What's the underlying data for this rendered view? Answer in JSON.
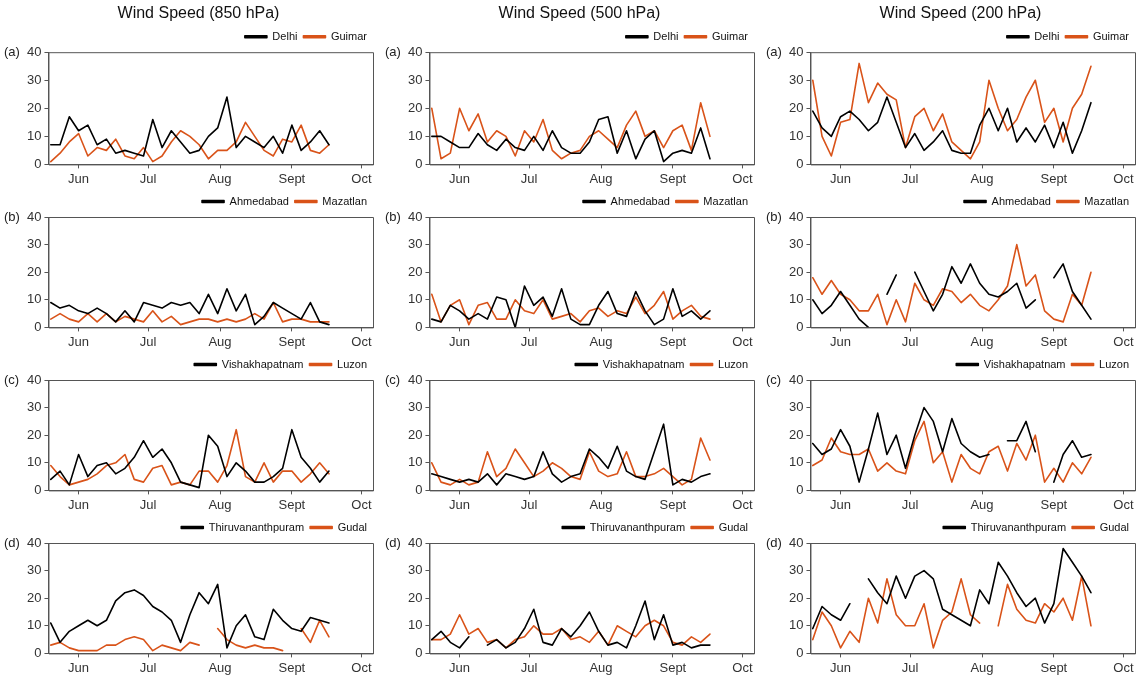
{
  "chart_data": [
    {
      "type": "line",
      "title": "Wind Speed (850 hPa)",
      "annotations": [
        "(a)"
      ],
      "legend": "top right",
      "x": [
        "--05-20",
        "--05-24",
        "--05-28",
        "--06-01",
        "--06-05",
        "--06-09",
        "--06-13",
        "--06-17",
        "--06-21",
        "--06-25",
        "--06-29",
        "--07-03",
        "--07-07",
        "--07-11",
        "--07-15",
        "--07-19",
        "--07-23",
        "--07-27",
        "--07-31",
        "--08-04",
        "--08-08",
        "--08-12",
        "--08-16",
        "--08-20",
        "--08-24",
        "--08-28",
        "--09-01",
        "--09-05",
        "--09-09",
        "--09-13",
        "--09-17"
      ],
      "xlim": [
        "--05-19",
        "--10-06"
      ],
      "xticks": [
        {
          "value": "--06-01",
          "label": "Jun"
        },
        {
          "value": "--07-01",
          "label": "Jul"
        },
        {
          "value": "--08-01",
          "label": "Aug"
        },
        {
          "value": "--09-01",
          "label": "Sept"
        },
        {
          "value": "--10-01",
          "label": "Oct"
        }
      ],
      "ylim": [
        0,
        40
      ],
      "yticks": [
        0,
        10,
        20,
        30,
        40
      ],
      "series": [
        {
          "name": "Delhi",
          "color": "#000000",
          "values": [
            7,
            7,
            17,
            12,
            14,
            7,
            9,
            4,
            5,
            4,
            3,
            16,
            6,
            12,
            8,
            4,
            5,
            10,
            13,
            24,
            6,
            10,
            8,
            6,
            10,
            4,
            14,
            5,
            8,
            12,
            7
          ]
        },
        {
          "name": "Guimar",
          "color": "#d95319",
          "values": [
            1,
            4,
            8,
            11,
            3,
            6,
            5,
            9,
            3,
            2,
            6,
            1,
            3,
            8,
            12,
            10,
            7,
            2,
            5,
            5,
            8,
            15,
            10,
            5,
            3,
            9,
            8,
            14,
            5,
            4,
            7
          ]
        }
      ]
    },
    {
      "type": "line",
      "title": "Wind Speed (500 hPa)",
      "annotations": [
        "(a)"
      ],
      "legend": "top right",
      "x": [
        "--05-20",
        "--05-24",
        "--05-28",
        "--06-01",
        "--06-05",
        "--06-09",
        "--06-13",
        "--06-17",
        "--06-21",
        "--06-25",
        "--06-29",
        "--07-03",
        "--07-07",
        "--07-11",
        "--07-15",
        "--07-19",
        "--07-23",
        "--07-27",
        "--07-31",
        "--08-04",
        "--08-08",
        "--08-12",
        "--08-16",
        "--08-20",
        "--08-24",
        "--08-28",
        "--09-01",
        "--09-05",
        "--09-09",
        "--09-13",
        "--09-17"
      ],
      "xlim": [
        "--05-19",
        "--10-06"
      ],
      "xticks": [
        {
          "value": "--06-01",
          "label": "Jun"
        },
        {
          "value": "--07-01",
          "label": "Jul"
        },
        {
          "value": "--08-01",
          "label": "Aug"
        },
        {
          "value": "--09-01",
          "label": "Sept"
        },
        {
          "value": "--10-01",
          "label": "Oct"
        }
      ],
      "ylim": [
        0,
        40
      ],
      "yticks": [
        0,
        10,
        20,
        30,
        40
      ],
      "series": [
        {
          "name": "Delhi",
          "color": "#000000",
          "values": [
            10,
            10,
            8,
            6,
            6,
            11,
            7,
            5,
            9,
            6,
            5,
            10,
            5,
            12,
            6,
            4,
            4,
            8,
            16,
            17,
            4,
            12,
            2,
            9,
            12,
            1,
            4,
            5,
            4,
            13,
            2
          ]
        },
        {
          "name": "Guimar",
          "color": "#d95319",
          "values": [
            20,
            2,
            4,
            20,
            12,
            18,
            8,
            12,
            10,
            3,
            12,
            8,
            16,
            5,
            2,
            4,
            5,
            10,
            12,
            9,
            6,
            14,
            19,
            10,
            12,
            6,
            12,
            14,
            5,
            22,
            10
          ]
        }
      ]
    },
    {
      "type": "line",
      "title": "Wind Speed (200 hPa)",
      "annotations": [
        "(a)"
      ],
      "legend": "top right",
      "x": [
        "--05-20",
        "--05-24",
        "--05-28",
        "--06-01",
        "--06-05",
        "--06-09",
        "--06-13",
        "--06-17",
        "--06-21",
        "--06-25",
        "--06-29",
        "--07-03",
        "--07-07",
        "--07-11",
        "--07-15",
        "--07-19",
        "--07-23",
        "--07-27",
        "--07-31",
        "--08-04",
        "--08-08",
        "--08-12",
        "--08-16",
        "--08-20",
        "--08-24",
        "--08-28",
        "--09-01",
        "--09-05",
        "--09-09",
        "--09-13",
        "--09-17"
      ],
      "xlim": [
        "--05-19",
        "--10-06"
      ],
      "xticks": [
        {
          "value": "--06-01",
          "label": "Jun"
        },
        {
          "value": "--07-01",
          "label": "Jul"
        },
        {
          "value": "--08-01",
          "label": "Aug"
        },
        {
          "value": "--09-01",
          "label": "Sept"
        },
        {
          "value": "--10-01",
          "label": "Oct"
        }
      ],
      "ylim": [
        0,
        40
      ],
      "yticks": [
        0,
        10,
        20,
        30,
        40
      ],
      "series": [
        {
          "name": "Delhi",
          "color": "#000000",
          "values": [
            19,
            13,
            10,
            17,
            19,
            16,
            12,
            15,
            24,
            15,
            6,
            11,
            5,
            8,
            12,
            5,
            4,
            4,
            14,
            20,
            12,
            20,
            8,
            13,
            8,
            14,
            6,
            15,
            4,
            12,
            22
          ]
        },
        {
          "name": "Guimar",
          "color": "#d95319",
          "values": [
            30,
            10,
            3,
            15,
            16,
            36,
            22,
            29,
            25,
            23,
            6,
            17,
            20,
            12,
            18,
            8,
            5,
            2,
            8,
            30,
            20,
            12,
            16,
            24,
            30,
            15,
            20,
            8,
            20,
            25,
            35
          ]
        }
      ]
    },
    {
      "type": "line",
      "annotations": [
        "(b)"
      ],
      "legend": "top right",
      "x": [
        "--05-20",
        "--05-24",
        "--05-28",
        "--06-01",
        "--06-05",
        "--06-09",
        "--06-13",
        "--06-17",
        "--06-21",
        "--06-25",
        "--06-29",
        "--07-03",
        "--07-07",
        "--07-11",
        "--07-15",
        "--07-19",
        "--07-23",
        "--07-27",
        "--07-31",
        "--08-04",
        "--08-08",
        "--08-12",
        "--08-16",
        "--08-20",
        "--08-24",
        "--08-28",
        "--09-01",
        "--09-05",
        "--09-09",
        "--09-13",
        "--09-17"
      ],
      "xlim": [
        "--05-19",
        "--10-06"
      ],
      "xticks": [
        {
          "value": "--06-01",
          "label": "Jun"
        },
        {
          "value": "--07-01",
          "label": "Jul"
        },
        {
          "value": "--08-01",
          "label": "Aug"
        },
        {
          "value": "--09-01",
          "label": "Sept"
        },
        {
          "value": "--10-01",
          "label": "Oct"
        }
      ],
      "ylim": [
        0,
        40
      ],
      "yticks": [
        0,
        10,
        20,
        30,
        40
      ],
      "series": [
        {
          "name": "Ahmedabad",
          "color": "#000000",
          "values": [
            9,
            7,
            8,
            6,
            5,
            7,
            5,
            2,
            6,
            2,
            9,
            8,
            7,
            9,
            8,
            9,
            5,
            12,
            5,
            14,
            6,
            12,
            1,
            4,
            9,
            7,
            5,
            3,
            9,
            2,
            1
          ]
        },
        {
          "name": "Mazatlan",
          "color": "#d95319",
          "values": [
            3,
            5,
            3,
            2,
            5,
            2,
            5,
            2,
            4,
            3,
            2,
            6,
            2,
            4,
            1,
            2,
            3,
            3,
            2,
            3,
            2,
            3,
            5,
            3,
            9,
            2,
            3,
            3,
            2,
            2,
            2
          ]
        }
      ]
    },
    {
      "type": "line",
      "annotations": [
        "(b)"
      ],
      "legend": "top right",
      "x": [
        "--05-20",
        "--05-24",
        "--05-28",
        "--06-01",
        "--06-05",
        "--06-09",
        "--06-13",
        "--06-17",
        "--06-21",
        "--06-25",
        "--06-29",
        "--07-03",
        "--07-07",
        "--07-11",
        "--07-15",
        "--07-19",
        "--07-23",
        "--07-27",
        "--07-31",
        "--08-04",
        "--08-08",
        "--08-12",
        "--08-16",
        "--08-20",
        "--08-24",
        "--08-28",
        "--09-01",
        "--09-05",
        "--09-09",
        "--09-13",
        "--09-17"
      ],
      "xlim": [
        "--05-19",
        "--10-06"
      ],
      "xticks": [
        {
          "value": "--06-01",
          "label": "Jun"
        },
        {
          "value": "--07-01",
          "label": "Jul"
        },
        {
          "value": "--08-01",
          "label": "Aug"
        },
        {
          "value": "--09-01",
          "label": "Sept"
        },
        {
          "value": "--10-01",
          "label": "Oct"
        }
      ],
      "ylim": [
        0,
        40
      ],
      "yticks": [
        0,
        10,
        20,
        30,
        40
      ],
      "series": [
        {
          "name": "Ahmedabad",
          "color": "#000000",
          "values": [
            3,
            2,
            8,
            6,
            3,
            5,
            3,
            11,
            10,
            0,
            15,
            8,
            11,
            4,
            14,
            3,
            1,
            1,
            8,
            13,
            5,
            4,
            13,
            6,
            1,
            3,
            14,
            4,
            6,
            3,
            6
          ]
        },
        {
          "name": "Mazatlan",
          "color": "#d95319",
          "values": [
            12,
            2,
            8,
            10,
            1,
            8,
            9,
            3,
            3,
            10,
            6,
            5,
            10,
            3,
            4,
            5,
            2,
            6,
            7,
            4,
            6,
            5,
            11,
            5,
            8,
            13,
            3,
            6,
            8,
            4,
            3
          ]
        }
      ]
    },
    {
      "type": "line",
      "annotations": [
        "(b)"
      ],
      "legend": "top right",
      "x": [
        "--05-20",
        "--05-24",
        "--05-28",
        "--06-01",
        "--06-05",
        "--06-09",
        "--06-13",
        "--06-17",
        "--06-21",
        "--06-25",
        "--06-29",
        "--07-03",
        "--07-07",
        "--07-11",
        "--07-15",
        "--07-19",
        "--07-23",
        "--07-27",
        "--07-31",
        "--08-04",
        "--08-08",
        "--08-12",
        "--08-16",
        "--08-20",
        "--08-24",
        "--08-28",
        "--09-01",
        "--09-05",
        "--09-09",
        "--09-13",
        "--09-17"
      ],
      "xlim": [
        "--05-19",
        "--10-06"
      ],
      "xticks": [
        {
          "value": "--06-01",
          "label": "Jun"
        },
        {
          "value": "--07-01",
          "label": "Jul"
        },
        {
          "value": "--08-01",
          "label": "Aug"
        },
        {
          "value": "--09-01",
          "label": "Sept"
        },
        {
          "value": "--10-01",
          "label": "Oct"
        }
      ],
      "ylim": [
        0,
        40
      ],
      "yticks": [
        0,
        10,
        20,
        30,
        40
      ],
      "series": [
        {
          "name": "Ahmedabad",
          "color": "#000000",
          "values": [
            10,
            5,
            8,
            13,
            8,
            3,
            0,
            null,
            12,
            19,
            null,
            20,
            13,
            6,
            12,
            22,
            16,
            23,
            16,
            12,
            11,
            13,
            16,
            7,
            10,
            null,
            18,
            23,
            13,
            8,
            3
          ]
        },
        {
          "name": "Mazatlan",
          "color": "#d95319",
          "values": [
            18,
            12,
            17,
            12,
            10,
            6,
            6,
            12,
            1,
            10,
            2,
            16,
            10,
            8,
            14,
            13,
            9,
            12,
            8,
            6,
            10,
            15,
            30,
            15,
            19,
            6,
            3,
            2,
            12,
            8,
            20
          ]
        }
      ]
    },
    {
      "type": "line",
      "annotations": [
        "(c)"
      ],
      "legend": "top right",
      "x": [
        "--05-20",
        "--05-24",
        "--05-28",
        "--06-01",
        "--06-05",
        "--06-09",
        "--06-13",
        "--06-17",
        "--06-21",
        "--06-25",
        "--06-29",
        "--07-03",
        "--07-07",
        "--07-11",
        "--07-15",
        "--07-19",
        "--07-23",
        "--07-27",
        "--07-31",
        "--08-04",
        "--08-08",
        "--08-12",
        "--08-16",
        "--08-20",
        "--08-24",
        "--08-28",
        "--09-01",
        "--09-05",
        "--09-09",
        "--09-13",
        "--09-17"
      ],
      "xlim": [
        "--05-19",
        "--10-06"
      ],
      "xticks": [
        {
          "value": "--06-01",
          "label": "Jun"
        },
        {
          "value": "--07-01",
          "label": "Jul"
        },
        {
          "value": "--08-01",
          "label": "Aug"
        },
        {
          "value": "--09-01",
          "label": "Sept"
        },
        {
          "value": "--10-01",
          "label": "Oct"
        }
      ],
      "ylim": [
        0,
        40
      ],
      "yticks": [
        0,
        10,
        20,
        30,
        40
      ],
      "series": [
        {
          "name": "Vishakhapatnam",
          "color": "#000000",
          "values": [
            4,
            7,
            2,
            13,
            5,
            9,
            10,
            6,
            8,
            12,
            18,
            12,
            15,
            10,
            3,
            2,
            1,
            20,
            16,
            5,
            10,
            7,
            3,
            3,
            5,
            8,
            22,
            12,
            8,
            3,
            7
          ]
        },
        {
          "name": "Luzon",
          "color": "#d95319",
          "values": [
            9,
            5,
            2,
            3,
            4,
            6,
            9,
            10,
            13,
            4,
            3,
            8,
            9,
            2,
            3,
            2,
            7,
            7,
            3,
            9,
            22,
            5,
            3,
            10,
            3,
            7,
            7,
            3,
            6,
            10,
            6
          ]
        }
      ]
    },
    {
      "type": "line",
      "annotations": [
        "(c)"
      ],
      "legend": "top right",
      "x": [
        "--05-20",
        "--05-24",
        "--05-28",
        "--06-01",
        "--06-05",
        "--06-09",
        "--06-13",
        "--06-17",
        "--06-21",
        "--06-25",
        "--06-29",
        "--07-03",
        "--07-07",
        "--07-11",
        "--07-15",
        "--07-19",
        "--07-23",
        "--07-27",
        "--07-31",
        "--08-04",
        "--08-08",
        "--08-12",
        "--08-16",
        "--08-20",
        "--08-24",
        "--08-28",
        "--09-01",
        "--09-05",
        "--09-09",
        "--09-13",
        "--09-17"
      ],
      "xlim": [
        "--05-19",
        "--10-06"
      ],
      "xticks": [
        {
          "value": "--06-01",
          "label": "Jun"
        },
        {
          "value": "--07-01",
          "label": "Jul"
        },
        {
          "value": "--08-01",
          "label": "Aug"
        },
        {
          "value": "--09-01",
          "label": "Sept"
        },
        {
          "value": "--10-01",
          "label": "Oct"
        }
      ],
      "ylim": [
        0,
        40
      ],
      "yticks": [
        0,
        10,
        20,
        30,
        40
      ],
      "series": [
        {
          "name": "Vishakhapatnam",
          "color": "#000000",
          "values": [
            6,
            5,
            4,
            3,
            4,
            3,
            6,
            2,
            6,
            5,
            4,
            5,
            14,
            6,
            3,
            5,
            6,
            15,
            12,
            8,
            16,
            7,
            5,
            4,
            14,
            24,
            2,
            4,
            3,
            5,
            6
          ]
        },
        {
          "name": "Luzon",
          "color": "#d95319",
          "values": [
            10,
            3,
            2,
            4,
            2,
            3,
            14,
            5,
            8,
            15,
            10,
            5,
            7,
            10,
            8,
            5,
            4,
            14,
            7,
            5,
            6,
            14,
            5,
            5,
            6,
            8,
            5,
            2,
            4,
            19,
            11
          ]
        }
      ]
    },
    {
      "type": "line",
      "annotations": [
        "(c)"
      ],
      "legend": "top right",
      "x": [
        "--05-20",
        "--05-24",
        "--05-28",
        "--06-01",
        "--06-05",
        "--06-09",
        "--06-13",
        "--06-17",
        "--06-21",
        "--06-25",
        "--06-29",
        "--07-03",
        "--07-07",
        "--07-11",
        "--07-15",
        "--07-19",
        "--07-23",
        "--07-27",
        "--07-31",
        "--08-04",
        "--08-08",
        "--08-12",
        "--08-16",
        "--08-20",
        "--08-24",
        "--08-28",
        "--09-01",
        "--09-05",
        "--09-09",
        "--09-13",
        "--09-17"
      ],
      "xlim": [
        "--05-19",
        "--10-06"
      ],
      "xticks": [
        {
          "value": "--06-01",
          "label": "Jun"
        },
        {
          "value": "--07-01",
          "label": "Jul"
        },
        {
          "value": "--08-01",
          "label": "Aug"
        },
        {
          "value": "--09-01",
          "label": "Sept"
        },
        {
          "value": "--10-01",
          "label": "Oct"
        }
      ],
      "ylim": [
        0,
        40
      ],
      "yticks": [
        0,
        10,
        20,
        30,
        40
      ],
      "series": [
        {
          "name": "Vishakhapatnam",
          "color": "#000000",
          "values": [
            17,
            13,
            15,
            22,
            16,
            3,
            15,
            28,
            13,
            20,
            8,
            20,
            30,
            25,
            14,
            26,
            17,
            14,
            12,
            13,
            null,
            18,
            18,
            25,
            14,
            null,
            3,
            13,
            18,
            12,
            13
          ]
        },
        {
          "name": "Luzon",
          "color": "#d95319",
          "values": [
            9,
            11,
            19,
            14,
            13,
            13,
            15,
            7,
            10,
            7,
            6,
            18,
            25,
            10,
            14,
            3,
            13,
            8,
            6,
            14,
            16,
            7,
            17,
            11,
            20,
            3,
            8,
            3,
            10,
            6,
            12
          ]
        }
      ]
    },
    {
      "type": "line",
      "annotations": [
        "(d)"
      ],
      "legend": "top right",
      "x": [
        "--05-20",
        "--05-24",
        "--05-28",
        "--06-01",
        "--06-05",
        "--06-09",
        "--06-13",
        "--06-17",
        "--06-21",
        "--06-25",
        "--06-29",
        "--07-03",
        "--07-07",
        "--07-11",
        "--07-15",
        "--07-19",
        "--07-23",
        "--07-27",
        "--07-31",
        "--08-04",
        "--08-08",
        "--08-12",
        "--08-16",
        "--08-20",
        "--08-24",
        "--08-28",
        "--09-01",
        "--09-05",
        "--09-09",
        "--09-13",
        "--09-17"
      ],
      "xlim": [
        "--05-19",
        "--10-06"
      ],
      "xticks": [
        {
          "value": "--06-01",
          "label": "Jun"
        },
        {
          "value": "--07-01",
          "label": "Jul"
        },
        {
          "value": "--08-01",
          "label": "Aug"
        },
        {
          "value": "--09-01",
          "label": "Sept"
        },
        {
          "value": "--10-01",
          "label": "Oct"
        }
      ],
      "ylim": [
        0,
        40
      ],
      "yticks": [
        0,
        10,
        20,
        30,
        40
      ],
      "series": [
        {
          "name": "Thiruvananthpuram",
          "color": "#000000",
          "values": [
            11,
            4,
            8,
            10,
            12,
            10,
            12,
            19,
            22,
            23,
            21,
            17,
            15,
            12,
            4,
            14,
            22,
            18,
            25,
            2,
            10,
            14,
            6,
            5,
            16,
            12,
            9,
            8,
            13,
            12,
            11
          ]
        },
        {
          "name": "Gudal",
          "color": "#d95319",
          "values": [
            3,
            4,
            2,
            1,
            1,
            1,
            3,
            3,
            5,
            6,
            5,
            1,
            3,
            2,
            1,
            4,
            3,
            null,
            9,
            5,
            3,
            2,
            3,
            2,
            2,
            1,
            null,
            9,
            4,
            12,
            6
          ]
        }
      ]
    },
    {
      "type": "line",
      "annotations": [
        "(d)"
      ],
      "legend": "top right",
      "x": [
        "--05-20",
        "--05-24",
        "--05-28",
        "--06-01",
        "--06-05",
        "--06-09",
        "--06-13",
        "--06-17",
        "--06-21",
        "--06-25",
        "--06-29",
        "--07-03",
        "--07-07",
        "--07-11",
        "--07-15",
        "--07-19",
        "--07-23",
        "--07-27",
        "--07-31",
        "--08-04",
        "--08-08",
        "--08-12",
        "--08-16",
        "--08-20",
        "--08-24",
        "--08-28",
        "--09-01",
        "--09-05",
        "--09-09",
        "--09-13",
        "--09-17"
      ],
      "xlim": [
        "--05-19",
        "--10-06"
      ],
      "xticks": [
        {
          "value": "--06-01",
          "label": "Jun"
        },
        {
          "value": "--07-01",
          "label": "Jul"
        },
        {
          "value": "--08-01",
          "label": "Aug"
        },
        {
          "value": "--09-01",
          "label": "Sept"
        },
        {
          "value": "--10-01",
          "label": "Oct"
        }
      ],
      "ylim": [
        0,
        40
      ],
      "yticks": [
        0,
        10,
        20,
        30,
        40
      ],
      "series": [
        {
          "name": "Thiruvananthpuram",
          "color": "#000000",
          "values": [
            5,
            8,
            4,
            2,
            6,
            null,
            3,
            5,
            2,
            4,
            9,
            16,
            4,
            3,
            9,
            6,
            10,
            15,
            8,
            3,
            4,
            2,
            10,
            19,
            5,
            14,
            3,
            4,
            2,
            3,
            3
          ]
        },
        {
          "name": "Gudal",
          "color": "#d95319",
          "values": [
            5,
            5,
            7,
            14,
            7,
            9,
            4,
            5,
            2,
            5,
            6,
            10,
            7,
            7,
            9,
            5,
            6,
            4,
            8,
            3,
            10,
            8,
            6,
            10,
            12,
            10,
            4,
            3,
            6,
            4,
            7
          ]
        }
      ]
    },
    {
      "type": "line",
      "annotations": [
        "(d)"
      ],
      "legend": "top right",
      "x": [
        "--05-20",
        "--05-24",
        "--05-28",
        "--06-01",
        "--06-05",
        "--06-09",
        "--06-13",
        "--06-17",
        "--06-21",
        "--06-25",
        "--06-29",
        "--07-03",
        "--07-07",
        "--07-11",
        "--07-15",
        "--07-19",
        "--07-23",
        "--07-27",
        "--07-31",
        "--08-04",
        "--08-08",
        "--08-12",
        "--08-16",
        "--08-20",
        "--08-24",
        "--08-28",
        "--09-01",
        "--09-05",
        "--09-09",
        "--09-13",
        "--09-17"
      ],
      "xlim": [
        "--05-19",
        "--10-06"
      ],
      "xticks": [
        {
          "value": "--06-01",
          "label": "Jun"
        },
        {
          "value": "--07-01",
          "label": "Jul"
        },
        {
          "value": "--08-01",
          "label": "Aug"
        },
        {
          "value": "--09-01",
          "label": "Sept"
        },
        {
          "value": "--10-01",
          "label": "Oct"
        }
      ],
      "ylim": [
        0,
        40
      ],
      "yticks": [
        0,
        10,
        20,
        30,
        40
      ],
      "series": [
        {
          "name": "Thiruvananthpuram",
          "color": "#000000",
          "values": [
            9,
            17,
            14,
            12,
            18,
            null,
            27,
            22,
            18,
            28,
            20,
            28,
            30,
            27,
            16,
            14,
            12,
            10,
            23,
            18,
            33,
            28,
            22,
            17,
            20,
            11,
            18,
            38,
            33,
            28,
            22
          ]
        },
        {
          "name": "Gudal",
          "color": "#d95319",
          "values": [
            5,
            15,
            10,
            2,
            8,
            4,
            20,
            11,
            27,
            14,
            10,
            10,
            18,
            2,
            12,
            15,
            27,
            14,
            11,
            null,
            10,
            25,
            16,
            12,
            11,
            18,
            15,
            20,
            12,
            28,
            10
          ]
        }
      ]
    }
  ]
}
